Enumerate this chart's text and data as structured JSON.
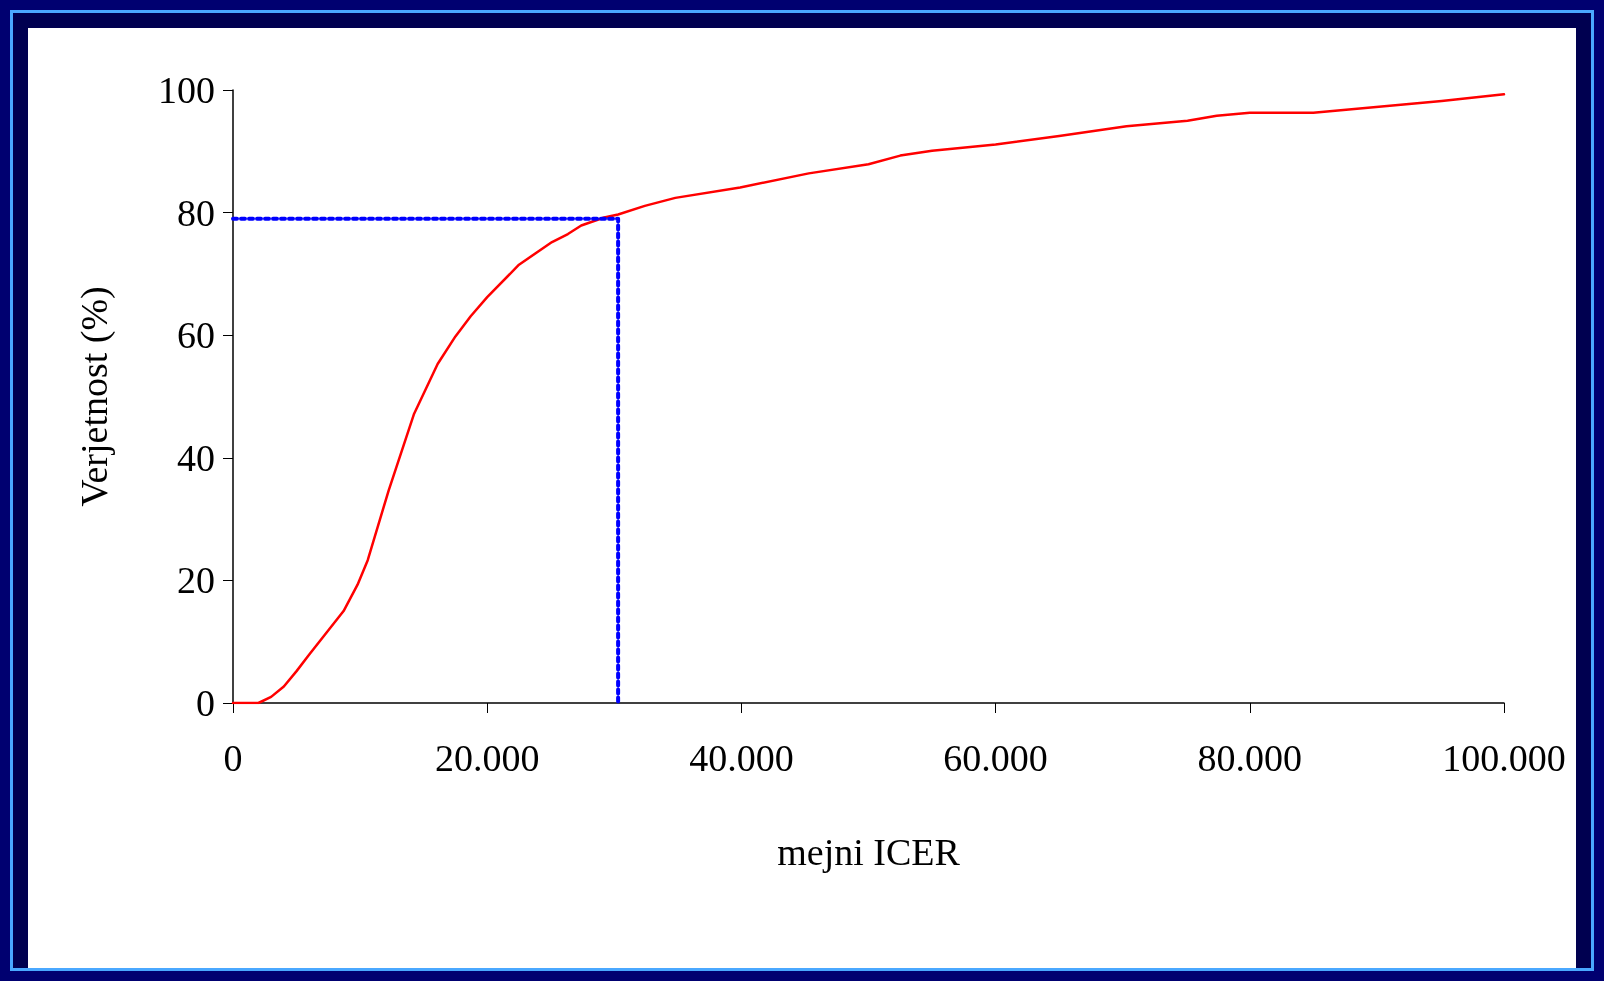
{
  "chart_data": {
    "type": "line",
    "xlabel": "mejni ICER",
    "ylabel": "Verjetnost (%)",
    "xlim": [
      0,
      100000
    ],
    "ylim": [
      0,
      100
    ],
    "xticks": [
      0,
      {
        "value": 20000,
        "label": "20.000"
      },
      {
        "value": 40000,
        "label": "40.000"
      },
      {
        "value": 60000,
        "label": "60.000"
      },
      {
        "value": 80000,
        "label": "80.000"
      },
      {
        "value": 100000,
        "label": "100.000"
      }
    ],
    "yticks": [
      0,
      20,
      40,
      60,
      80,
      100
    ],
    "grid": false,
    "marker": "none",
    "series": [
      {
        "color": "#ff0000",
        "line_style": "solid",
        "x": [
          0,
          2000,
          3000,
          4000,
          5000,
          6000,
          8700,
          9800,
          10600,
          12250,
          14250,
          16100,
          17500,
          18700,
          20000,
          22500,
          25100,
          26350,
          27400,
          29200,
          30300,
          32400,
          34800,
          39900,
          45300,
          50000,
          52500,
          55000,
          60000,
          65000,
          70300,
          75100,
          77400,
          80000,
          85000,
          95100,
          100000
        ],
        "values": [
          0,
          0,
          1,
          2.7,
          5.2,
          7.9,
          15,
          19.3,
          23.3,
          34.7,
          47.2,
          55.3,
          59.8,
          63.1,
          66.2,
          71.5,
          75.2,
          76.5,
          77.9,
          79.2,
          79.7,
          81.1,
          82.4,
          84.1,
          86.4,
          87.9,
          89.3,
          90.1,
          91.1,
          92.5,
          94.1,
          95,
          95.8,
          96.3,
          96.3,
          98.2,
          99.3
        ]
      },
      {
        "color": "#0000ff",
        "line_style": "dotted",
        "x": [
          0,
          30300,
          30300
        ],
        "values": [
          79,
          79,
          0
        ]
      }
    ]
  }
}
